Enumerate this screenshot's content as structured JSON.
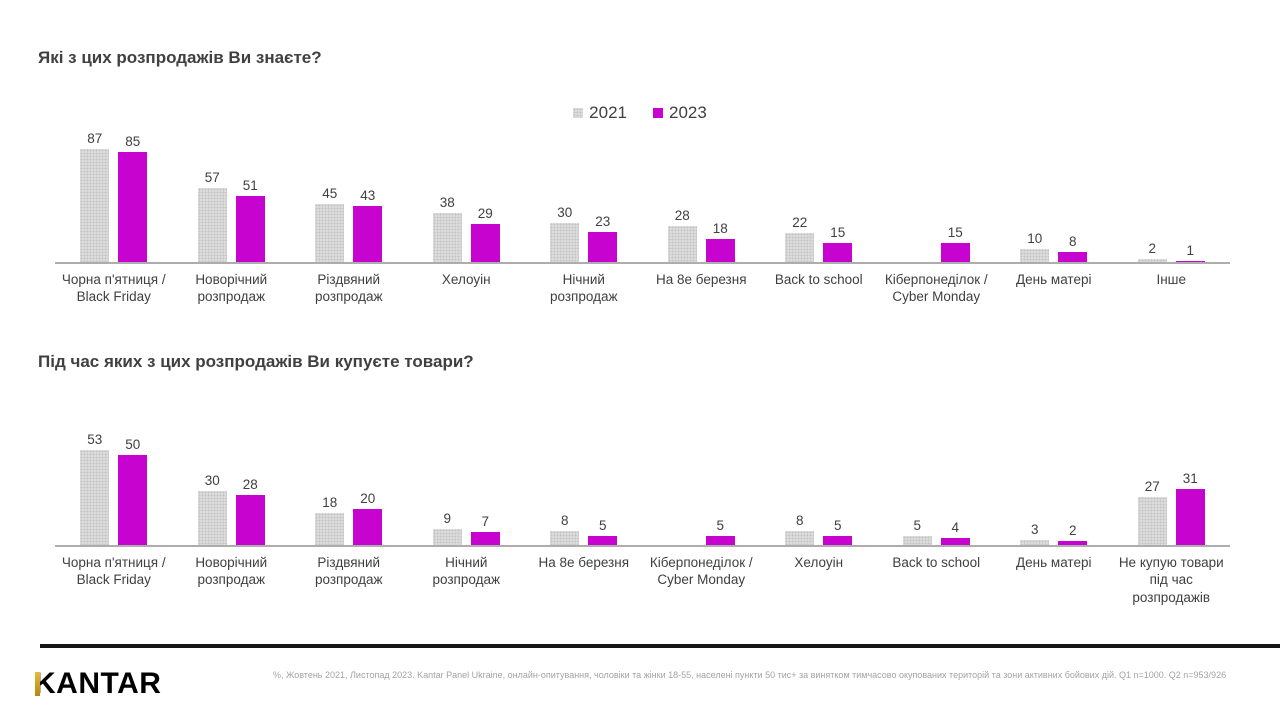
{
  "colors": {
    "series_2021": "#D9D9D9",
    "series_2023": "#C603CF",
    "title_text": "#404040",
    "axis_line": "#ADADAD",
    "footer_bar": "#161616",
    "footnote_text": "#A3A3A3",
    "logo_gold": "#C49A1A"
  },
  "legend": {
    "items": [
      {
        "label": "2021",
        "color": "#D9D9D9"
      },
      {
        "label": "2023",
        "color": "#C603CF"
      }
    ]
  },
  "chart_data": [
    {
      "type": "bar",
      "title": "Які з цих розпродажів Ви знаєте?",
      "unit": "%",
      "grid": false,
      "legend_position": "top-center",
      "data_labels": true,
      "categories": [
        "Чорна п'ятниця / Black Friday",
        "Новорічний розпродаж",
        "Різдвяний розпродаж",
        "Хелоуін",
        "Нічний розпродаж",
        "На 8е березня",
        "Back to school",
        "Кіберпонеділок / Cyber Monday",
        "День матері",
        "Інше"
      ],
      "series": [
        {
          "name": "2021",
          "values": [
            87,
            57,
            45,
            38,
            30,
            28,
            22,
            null,
            10,
            2
          ]
        },
        {
          "name": "2023",
          "values": [
            85,
            51,
            43,
            29,
            23,
            18,
            15,
            15,
            8,
            1
          ]
        }
      ]
    },
    {
      "type": "bar",
      "title": "Під час яких з цих розпродажів Ви купуєте товари?",
      "unit": "%",
      "grid": false,
      "legend_position": "none",
      "data_labels": true,
      "categories": [
        "Чорна п'ятниця / Black Friday",
        "Новорічний розпродаж",
        "Різдвяний розпродаж",
        "Нічний розпродаж",
        "На 8е березня",
        "Кіберпонеділок / Cyber Monday",
        "Хелоуін",
        "Back to school",
        "День матері",
        "Не купую товари під час розпродажів"
      ],
      "series": [
        {
          "name": "2021",
          "values": [
            53,
            30,
            18,
            9,
            8,
            null,
            8,
            5,
            3,
            27
          ]
        },
        {
          "name": "2023",
          "values": [
            50,
            28,
            20,
            7,
            5,
            5,
            5,
            4,
            2,
            31
          ]
        }
      ]
    }
  ],
  "footer": {
    "logo_text": "KANTAR",
    "note": "%, Жовтень 2021, Листопад 2023. Kantar Panel Ukraine, онлайн-опитування, чоловіки та жінки 18-55, населені пункти 50 тис+ за винятком тимчасово окупованих територій та зони активних бойових дій. Q1 n=1000. Q2 n=953/926"
  }
}
